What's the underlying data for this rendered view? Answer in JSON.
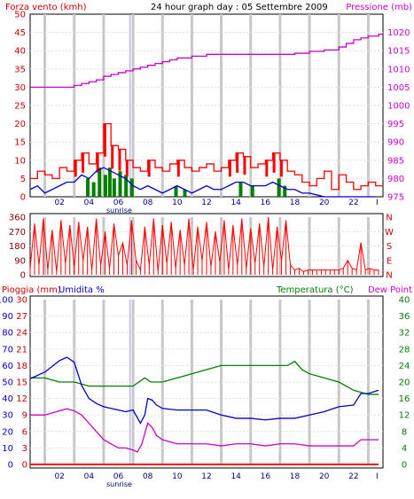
{
  "chart_data": [
    {
      "type": "line",
      "panel": "wind-pressure",
      "title": "24 hour graph day : 05 Settembre 2009",
      "ylabel_left": "Forza vento (kmh)",
      "ylabel_right": "Pressione (mb)",
      "ylim_left": [
        0,
        50
      ],
      "ylim_right": [
        975,
        1025
      ],
      "yticks_left": [
        "0",
        "5",
        "10",
        "15",
        "20",
        "25",
        "30",
        "35",
        "40",
        "45",
        "50"
      ],
      "yticks_right": [
        "975",
        "980",
        "985",
        "990",
        "995",
        "1000",
        "1005",
        "1010",
        "1015",
        "1020"
      ],
      "xticks": [
        "02",
        "04",
        "06",
        "08",
        "10",
        "12",
        "14",
        "16",
        "18",
        "20",
        "22",
        "I"
      ],
      "marker_label": "sunrise",
      "colors": {
        "gust": "#ff0000",
        "wind": "#0000cc",
        "calm": "#008000",
        "pressure": "#cc00cc",
        "axis": "#800000",
        "grid": "#cccccc"
      },
      "pressure": {
        "x": [
          0,
          1,
          2,
          3,
          3.5,
          4,
          4.5,
          5,
          5.5,
          6,
          6.5,
          7,
          7.5,
          8,
          8.5,
          9,
          9.5,
          10,
          11,
          12,
          13,
          14,
          15,
          16,
          17,
          18,
          19,
          20,
          21,
          21.5,
          22,
          22.5,
          23,
          23.7
        ],
        "y": [
          1005,
          1005,
          1005,
          1005.5,
          1006,
          1006.5,
          1007,
          1008,
          1008.5,
          1009,
          1009.5,
          1010,
          1010.5,
          1011,
          1011.5,
          1012,
          1012.5,
          1013,
          1013.5,
          1014,
          1014,
          1014,
          1014,
          1014,
          1014,
          1014.3,
          1014.8,
          1015.2,
          1016,
          1017,
          1018,
          1018.5,
          1019,
          1019.5
        ]
      },
      "wind": {
        "x": [
          0,
          0.5,
          1,
          1.5,
          2,
          2.5,
          3,
          3.5,
          4,
          4.5,
          5,
          5.5,
          6,
          6.5,
          7,
          7.5,
          8,
          8.5,
          9,
          9.5,
          10,
          10.5,
          11,
          11.5,
          12,
          12.5,
          13,
          13.5,
          14,
          14.5,
          15,
          15.5,
          16,
          16.5,
          17,
          17.5,
          18,
          18.5,
          19,
          19.5,
          20,
          20.5,
          21,
          21.5,
          22,
          22.5,
          23,
          23.5
        ],
        "y": [
          2,
          3,
          1,
          2,
          3,
          4,
          4,
          6,
          5,
          7,
          8,
          7,
          6,
          5,
          3,
          2,
          3,
          2,
          1,
          2,
          3,
          2,
          1,
          2,
          3,
          2,
          2,
          3,
          4,
          4,
          3,
          3,
          3,
          4,
          3,
          2,
          2,
          1,
          1,
          0.5,
          0,
          0,
          0,
          0,
          0,
          0,
          0,
          0
        ]
      },
      "gust": {
        "x": [
          0,
          0.5,
          1,
          1.5,
          2,
          2.5,
          3,
          3.5,
          4,
          4.5,
          5,
          5.5,
          6,
          6.5,
          7,
          7.5,
          8,
          8.5,
          9,
          9.5,
          10,
          10.5,
          11,
          11.5,
          12,
          12.5,
          13,
          13.5,
          14,
          14.5,
          15,
          15.5,
          16,
          16.5,
          17,
          17.5,
          18,
          18.5,
          19,
          19.5,
          20,
          20.5,
          21,
          21.5,
          22,
          22.5,
          23,
          23.5
        ],
        "y": [
          5,
          7,
          6,
          5,
          8,
          7,
          10,
          12,
          9,
          12,
          20,
          14,
          13,
          10,
          8,
          7,
          10,
          8,
          7,
          9,
          10,
          8,
          7,
          8,
          9,
          7,
          8,
          10,
          12,
          11,
          8,
          9,
          10,
          12,
          10,
          7,
          6,
          4,
          3,
          5,
          7,
          2,
          6,
          4,
          2,
          3,
          4,
          3
        ]
      },
      "calm_bars": {
        "x": [
          3.8,
          4.2,
          4.6,
          5.0,
          5.3,
          5.6,
          6.0,
          6.4,
          6.8,
          9.8,
          10.4,
          14.2,
          15.0,
          16.8,
          17.2
        ],
        "y": [
          5,
          4,
          8,
          6,
          8,
          5,
          7,
          6,
          5,
          3,
          2,
          4,
          3,
          5,
          3
        ]
      }
    },
    {
      "type": "line",
      "panel": "wind-direction",
      "ylim": [
        0,
        360
      ],
      "yticks_left": [
        "0",
        "90",
        "180",
        "270",
        "360"
      ],
      "yticks_right": [
        "N",
        "E",
        "S",
        "W",
        "N"
      ],
      "xticks": [
        "02",
        "04",
        "06",
        "08",
        "10",
        "12",
        "14",
        "16",
        "18",
        "20",
        "22",
        "I"
      ],
      "marker_label": "sunrise",
      "direction": {
        "x": [
          0,
          0.3,
          0.6,
          0.9,
          1.2,
          1.5,
          1.8,
          2.1,
          2.4,
          2.7,
          3,
          3.3,
          3.6,
          3.9,
          4.2,
          4.5,
          4.8,
          5.1,
          5.4,
          5.7,
          6,
          6.3,
          6.6,
          6.9,
          7.2,
          7.5,
          7.8,
          8.1,
          8.4,
          8.7,
          9,
          9.3,
          9.6,
          9.9,
          10.2,
          10.5,
          10.8,
          11.1,
          11.4,
          11.7,
          12,
          12.3,
          12.6,
          12.9,
          13.2,
          13.5,
          13.8,
          14.1,
          14.4,
          14.7,
          15,
          15.3,
          15.6,
          15.9,
          16.2,
          16.5,
          16.8,
          17.1,
          17.4,
          17.7,
          18,
          18.3,
          18.6,
          18.9,
          19.2,
          19.5,
          19.8,
          20.1,
          20.4,
          20.7,
          21,
          21.3,
          21.6,
          21.9,
          22.2,
          22.5,
          22.8,
          23.1,
          23.4,
          23.7
        ],
        "y": [
          40,
          320,
          60,
          350,
          30,
          280,
          20,
          340,
          70,
          310,
          50,
          330,
          90,
          300,
          30,
          350,
          60,
          270,
          40,
          320,
          120,
          200,
          60,
          340,
          90,
          30,
          300,
          60,
          350,
          20,
          310,
          70,
          330,
          40,
          280,
          60,
          350,
          30,
          300,
          90,
          330,
          50,
          270,
          80,
          340,
          30,
          310,
          60,
          350,
          40,
          290,
          70,
          320,
          50,
          360,
          30,
          300,
          90,
          340,
          60,
          30,
          40,
          20,
          30,
          30,
          30,
          30,
          30,
          30,
          30,
          30,
          40,
          90,
          40,
          30,
          200,
          30,
          40,
          30,
          30
        ]
      }
    },
    {
      "type": "line",
      "panel": "temp-humidity-rain",
      "ylabel_left_1": "Pioggia (mm)",
      "ylabel_left_2": "Umidita %",
      "ylabel_right_1": "Temperatura (°C)",
      "ylabel_right_2": "Dew Point",
      "yticks_humidity": [
        "0",
        "10",
        "20",
        "30",
        "40",
        "50",
        "60",
        "70",
        "80",
        "90",
        "100"
      ],
      "yticks_rain": [
        "0",
        "3",
        "6",
        "9",
        "12",
        "15",
        "18",
        "21",
        "24",
        "27",
        "30"
      ],
      "yticks_temp": [
        "0",
        "4",
        "8",
        "12",
        "16",
        "20",
        "24",
        "28",
        "32",
        "36",
        "40"
      ],
      "ylim_humidity": [
        0,
        100
      ],
      "ylim_temp": [
        0,
        40
      ],
      "xticks": [
        "02",
        "04",
        "06",
        "08",
        "10",
        "12",
        "14",
        "16",
        "18",
        "20",
        "22",
        "I"
      ],
      "marker_label": "sunrise",
      "colors": {
        "temperature": "#008000",
        "humidity": "#0000cc",
        "dewpoint": "#cc00cc",
        "rain": "#ff0000"
      },
      "temperature": {
        "x": [
          0,
          1,
          2,
          3,
          4,
          5,
          6,
          7,
          7.8,
          8.2,
          8.6,
          9,
          10,
          11,
          12,
          13,
          14,
          15,
          16,
          17,
          17.5,
          18,
          18.5,
          19,
          20,
          21,
          22,
          23,
          23.7
        ],
        "y": [
          21,
          21,
          20,
          20,
          19,
          19,
          19,
          19,
          21,
          20,
          20,
          20,
          21,
          22,
          23,
          24,
          24,
          24,
          24,
          24,
          24,
          25,
          23,
          22,
          21,
          20,
          18,
          17,
          17
        ]
      },
      "humidity": {
        "x": [
          0,
          1,
          2,
          2.5,
          3,
          3.5,
          4,
          4.5,
          5,
          5.5,
          6,
          6.5,
          7,
          7.5,
          7.8,
          8,
          8.3,
          8.6,
          9,
          10,
          11,
          12,
          13,
          14,
          15,
          16,
          17,
          18,
          19,
          20,
          21,
          22,
          22.5,
          23,
          23.7
        ],
        "y": [
          52,
          56,
          63,
          65,
          62,
          48,
          40,
          37,
          35,
          34,
          33,
          32,
          33,
          25,
          30,
          40,
          39,
          36,
          34,
          33,
          33,
          33,
          30,
          28,
          28,
          27,
          28,
          28,
          30,
          32,
          35,
          36,
          43,
          43,
          45
        ]
      },
      "dewpoint": {
        "x": [
          0,
          1,
          2,
          2.5,
          3,
          3.5,
          4,
          4.5,
          5,
          5.5,
          6,
          6.5,
          7,
          7.3,
          7.6,
          8,
          8.3,
          8.6,
          9,
          10,
          11,
          12,
          13,
          14,
          15,
          16,
          17,
          18,
          19,
          20,
          21,
          22,
          22.5,
          23,
          23.7
        ],
        "y": [
          12,
          12,
          13,
          13.5,
          13,
          12,
          10,
          8,
          6,
          5,
          4,
          4,
          3.5,
          3,
          5,
          10,
          9,
          7,
          6,
          5,
          5,
          5,
          4.5,
          5,
          5,
          4.5,
          5,
          5,
          4.5,
          4.5,
          4.5,
          4.5,
          6,
          6,
          6
        ]
      },
      "rain": {
        "x": [
          0,
          23.7
        ],
        "y": [
          0,
          0
        ]
      }
    }
  ]
}
